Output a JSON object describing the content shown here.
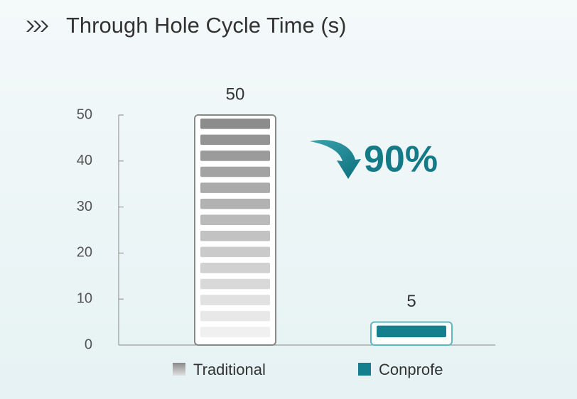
{
  "chart_data": {
    "type": "bar",
    "title": "Through Hole Cycle Time (s)",
    "categories": [
      "Traditional",
      "Conprofe"
    ],
    "values": [
      50,
      5
    ],
    "colors": [
      "#9a9a9a",
      "#167f8e"
    ],
    "ylim": [
      0,
      50
    ],
    "yticks": [
      0,
      10,
      20,
      30,
      40,
      50
    ],
    "annotation": "90%"
  }
}
